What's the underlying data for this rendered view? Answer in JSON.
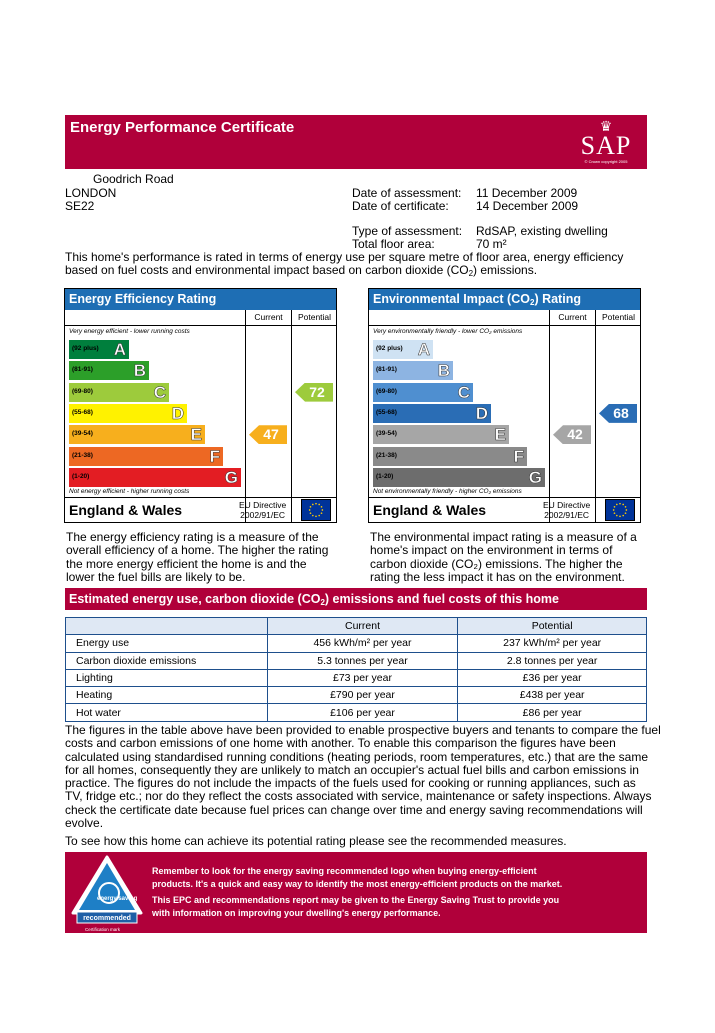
{
  "header": {
    "title": "Energy Performance Certificate",
    "logo_text": "SAP",
    "logo_copyright": "© Crown copyright 2005"
  },
  "address": {
    "street": "Goodrich Road",
    "city": "LONDON",
    "postcode": "SE22"
  },
  "assessment": {
    "date_assessment_label": "Date of assessment:",
    "date_assessment": "11 December 2009",
    "date_certificate_label": "Date of certificate:",
    "date_certificate": "14 December 2009",
    "type_label": "Type of assessment:",
    "type": "RdSAP, existing dwelling",
    "floor_area_label": "Total floor area:",
    "floor_area": "70 m²"
  },
  "intro": {
    "line1": "This home's performance is rated in terms of energy use per square metre of floor area, energy efficiency",
    "line2a": "based on fuel costs and environmental impact based on carbon dioxide (CO",
    "line2sub": "2",
    "line2b": ") emissions."
  },
  "efficiency": {
    "title": "Energy Efficiency Rating",
    "col_current": "Current",
    "col_potential": "Potential",
    "top_note": "Very energy efficient - lower running costs",
    "bottom_note": "Not energy efficient - higher running costs",
    "bands": [
      {
        "range": "(92 plus)",
        "letter": "A",
        "color": "#007f3d"
      },
      {
        "range": "(81-91)",
        "letter": "B",
        "color": "#2c9f29"
      },
      {
        "range": "(69-80)",
        "letter": "C",
        "color": "#9dcb3c"
      },
      {
        "range": "(55-68)",
        "letter": "D",
        "color": "#fff200"
      },
      {
        "range": "(39-54)",
        "letter": "E",
        "color": "#f7af1d"
      },
      {
        "range": "(21-38)",
        "letter": "F",
        "color": "#ed6823"
      },
      {
        "range": "(1-20)",
        "letter": "G",
        "color": "#e31d23"
      }
    ],
    "current": "47",
    "current_color": "#f7af1d",
    "potential": "72",
    "potential_color": "#9dcb3c",
    "region": "England & Wales",
    "directive_line1": "EU Directive",
    "directive_line2": "2002/91/EC",
    "description": [
      "The energy efficiency rating is a measure of the",
      "overall efficiency of a home. The higher the rating",
      "the more energy efficient the home is and the",
      "lower the fuel bills are likely to be."
    ]
  },
  "environmental": {
    "title_a": "Environmental Impact (CO",
    "title_sub": "2",
    "title_b": ") Rating",
    "col_current": "Current",
    "col_potential": "Potential",
    "top_note": "Very environmentally friendly - lower CO₂ emissions",
    "bottom_note": "Not environmentally friendly - higher CO₂ emissions",
    "bands": [
      {
        "range": "(92 plus)",
        "letter": "A",
        "color": "#cfe2f3"
      },
      {
        "range": "(81-91)",
        "letter": "B",
        "color": "#8db4e2"
      },
      {
        "range": "(69-80)",
        "letter": "C",
        "color": "#4f8fd0"
      },
      {
        "range": "(55-68)",
        "letter": "D",
        "color": "#2a6db5"
      },
      {
        "range": "(39-54)",
        "letter": "E",
        "color": "#a6a6a6"
      },
      {
        "range": "(21-38)",
        "letter": "F",
        "color": "#8a8a8a"
      },
      {
        "range": "(1-20)",
        "letter": "G",
        "color": "#6d6d6d"
      }
    ],
    "current": "42",
    "current_color": "#a6a6a6",
    "potential": "68",
    "potential_color": "#2a6db5",
    "region": "England & Wales",
    "directive_line1": "EU Directive",
    "directive_line2": "2002/91/EC",
    "description": [
      "The environmental impact rating is a measure of a",
      "home's impact on the environment in terms of",
      "carbon dioxide (CO₂) emissions. The higher the",
      "rating the less impact it has on the environment."
    ]
  },
  "estimates": {
    "title_a": "Estimated energy use, carbon dioxide (CO",
    "title_sub": "2",
    "title_b": ") emissions and fuel costs of this home",
    "col_current": "Current",
    "col_potential": "Potential",
    "rows": [
      {
        "label": "Energy use",
        "current": "456 kWh/m² per year",
        "potential": "237 kWh/m² per year"
      },
      {
        "label": "Carbon dioxide emissions",
        "current": "5.3 tonnes per year",
        "potential": "2.8 tonnes per year"
      },
      {
        "label": "Lighting",
        "current": "£73 per year",
        "potential": "£36 per year"
      },
      {
        "label": "Heating",
        "current": "£790 per year",
        "potential": "£438 per year"
      },
      {
        "label": "Hot water",
        "current": "£106 per year",
        "potential": "£86 per year"
      }
    ]
  },
  "explanation": [
    "The figures in the table above have been provided to enable prospective buyers and tenants to compare the fuel",
    "costs and carbon emissions of one home with another. To enable this comparison the figures have been",
    "calculated using standardised running conditions (heating periods, room temperatures, etc.) that are the same",
    "for all homes, consequently they are unlikely to match an occupier's actual fuel bills and carbon emissions in",
    "practice. The figures do not include the impacts of the fuels used for cooking or running appliances, such as",
    "TV, fridge etc.; nor do they reflect the costs associated with service, maintenance or safety inspections. Always",
    "check the certificate date because fuel prices can change over time and energy saving recommendations will",
    "evolve."
  ],
  "recommend_line": "To see how this home can achieve its potential rating please see the recommended measures.",
  "footer": {
    "logo_top": "energy saving",
    "logo_bottom": "recommended",
    "cert_mark": "Certification mark",
    "lines": [
      "Remember to look for the energy saving recommended logo when buying energy-efficient",
      "products. It's a quick and easy way to identify the most energy-efficient products on the market.",
      "This EPC and recommendations report may be given to the Energy Saving Trust to provide you",
      "with information on improving your dwelling's energy performance."
    ]
  }
}
